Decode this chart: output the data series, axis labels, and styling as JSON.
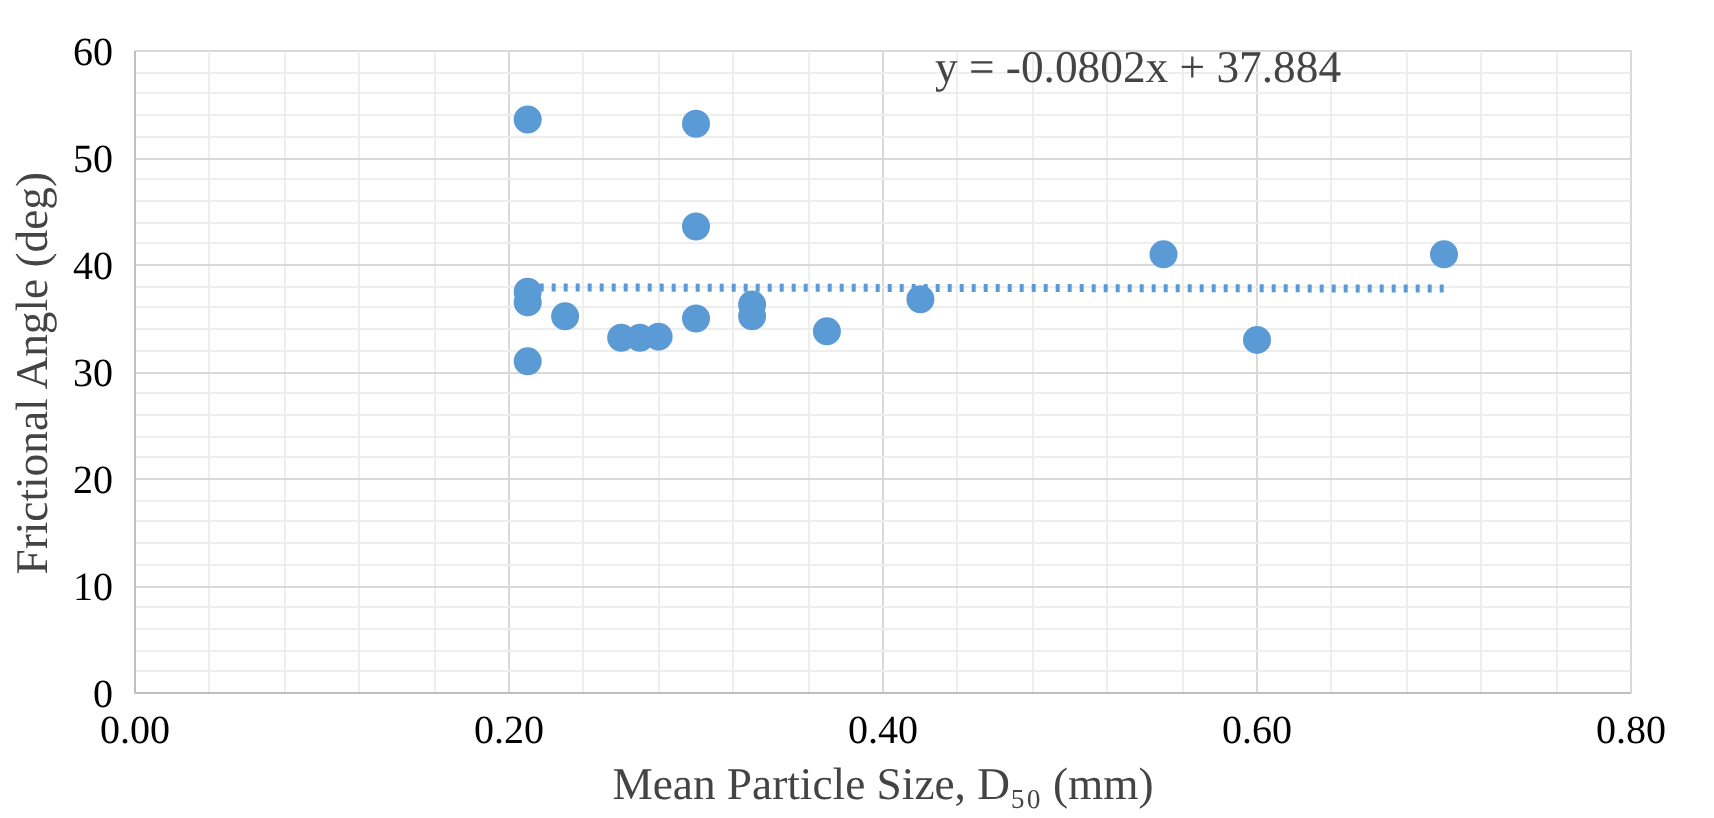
{
  "chart_data": {
    "type": "scatter",
    "xlabel": "Mean Particle Size, D₅₀ (mm)",
    "ylabel": "Frictional Angle (deg)",
    "xlim": [
      0,
      0.8
    ],
    "ylim": [
      0,
      60
    ],
    "xticks": [
      {
        "value": 0,
        "label": "0.00"
      },
      {
        "value": 0.2,
        "label": "0.20"
      },
      {
        "value": 0.4,
        "label": "0.40"
      },
      {
        "value": 0.6,
        "label": "0.60"
      },
      {
        "value": 0.8,
        "label": "0.80"
      }
    ],
    "yticks": [
      0,
      10,
      20,
      30,
      40,
      50,
      60
    ],
    "grid": true,
    "annotations": [
      "y = -0.0802x + 37.884"
    ],
    "series": [
      {
        "marker": "circle",
        "color": "#5b9bd5",
        "x": [
          0.21,
          0.21,
          0.21,
          0.21,
          0.23,
          0.26,
          0.27,
          0.28,
          0.3,
          0.3,
          0.3,
          0.33,
          0.33,
          0.37,
          0.42,
          0.55,
          0.6,
          0.7
        ],
        "values": [
          53.6,
          37.5,
          36.5,
          31,
          35.2,
          33.2,
          33.2,
          33.3,
          53.2,
          43.6,
          35,
          36.3,
          35.2,
          33.8,
          36.8,
          41,
          33,
          41
        ]
      },
      {
        "type": "line",
        "color": "#5b9bd5",
        "line_style": "dotted",
        "x": [
          0.21,
          0.7
        ],
        "values": [
          37.9,
          37.8
        ]
      }
    ]
  }
}
